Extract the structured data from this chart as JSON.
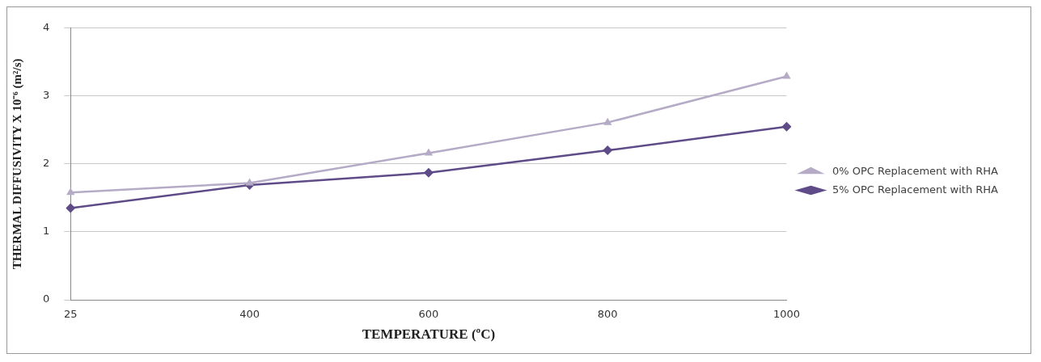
{
  "chart_data": {
    "type": "line",
    "xlabel": "TEMPERATURE (ºC)",
    "ylabel": "THERMAL DIFFUSIVITY X 10⁻⁶ (m²/s)",
    "categories": [
      "25",
      "400",
      "600",
      "800",
      "1000"
    ],
    "series": [
      {
        "name": "0% OPC Replacement with RHA",
        "color": "#b5abc6",
        "marker": "triangle",
        "values": [
          1.58,
          1.72,
          2.16,
          2.61,
          3.29
        ]
      },
      {
        "name": "5% OPC Replacement with RHA",
        "color": "#5f4b88",
        "marker": "diamond",
        "values": [
          1.35,
          1.69,
          1.87,
          2.2,
          2.55
        ]
      }
    ],
    "ylim": [
      0,
      4
    ],
    "yticks": [
      0,
      1,
      2,
      3,
      4
    ],
    "grid": "y",
    "legend": "right",
    "line_style": "solid"
  }
}
